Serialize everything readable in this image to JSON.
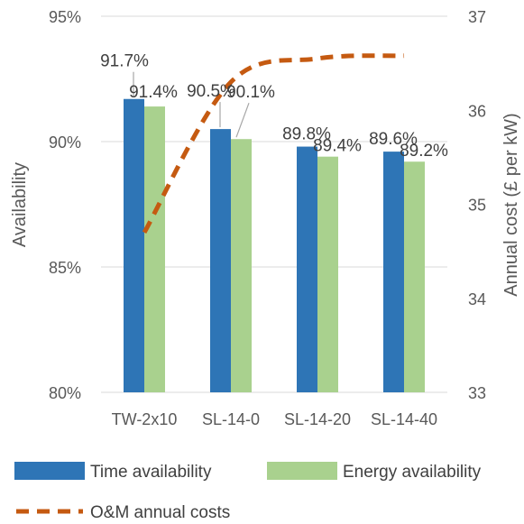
{
  "chart_data": {
    "type": "bar",
    "categories": [
      "TW-2x10",
      "SL-14-0",
      "SL-14-20",
      "SL-14-40"
    ],
    "series": [
      {
        "name": "Time availability",
        "values": [
          91.7,
          90.5,
          89.8,
          89.6
        ],
        "labels": [
          "91.7%",
          "90.5%",
          "89.8%",
          "89.6%"
        ],
        "color": "#2E75B6"
      },
      {
        "name": "Energy availability",
        "values": [
          91.4,
          90.1,
          89.4,
          89.2
        ],
        "labels": [
          "91.4%",
          "90.1%",
          "89.4%",
          "89.2%"
        ],
        "color": "#A9D18E"
      }
    ],
    "line_series": {
      "name": "O&M annual costs",
      "axis": "right",
      "values": [
        34.7,
        36.3,
        36.55,
        36.58
      ],
      "color": "#C55A11",
      "style": "dashed"
    },
    "ylabel": "Availability",
    "y2label": "Annual cost (£ per kW)",
    "ylim": [
      80,
      95
    ],
    "y2lim": [
      33,
      37
    ],
    "yticks": [
      "80%",
      "85%",
      "90%",
      "95%"
    ],
    "y2ticks": [
      "33",
      "34",
      "35",
      "36",
      "37"
    ],
    "grid": true,
    "legend_position": "bottom"
  }
}
